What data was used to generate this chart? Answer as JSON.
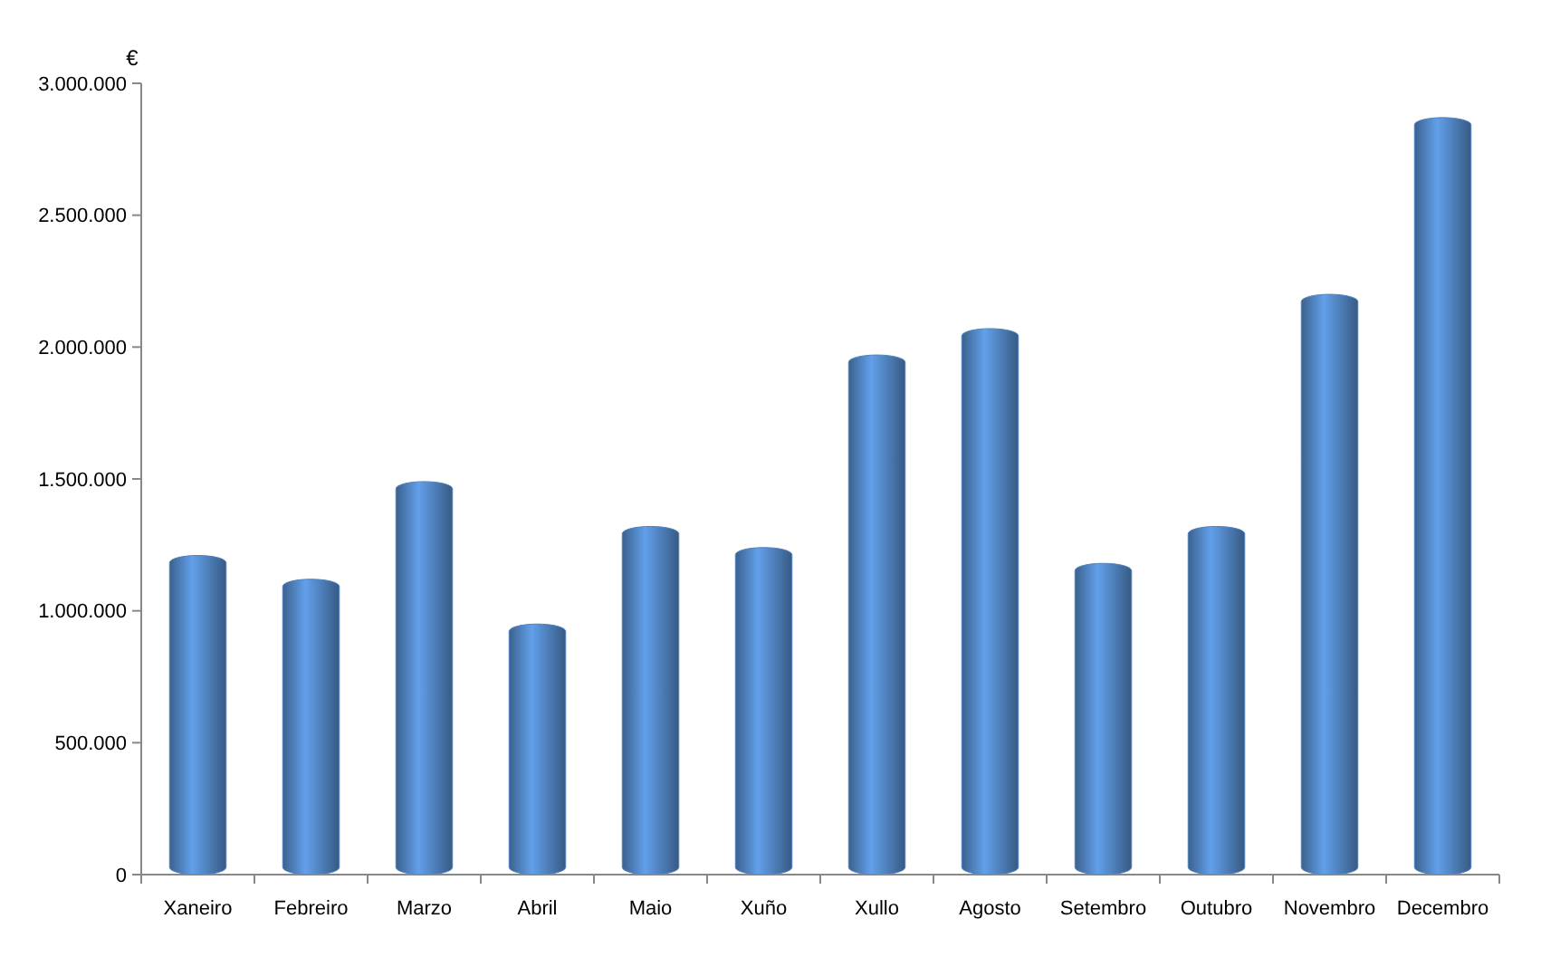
{
  "chart_data": {
    "type": "bar",
    "ylabel": "€",
    "categories": [
      "Xaneiro",
      "Febreiro",
      "Marzo",
      "Abril",
      "Maio",
      "Xuño",
      "Xullo",
      "Agosto",
      "Setembro",
      "Outubro",
      "Novembro",
      "Decembro"
    ],
    "values": [
      1210000,
      1120000,
      1490000,
      950000,
      1320000,
      1240000,
      1970000,
      2070000,
      1180000,
      1320000,
      2200000,
      2870000
    ],
    "color": "#4f81bd",
    "ylim": [
      0,
      3000000
    ],
    "yticks": [
      0,
      {
        "value": 500000,
        "label": "500.000"
      },
      {
        "value": 1000000,
        "label": "1.000.000"
      },
      {
        "value": 1500000,
        "label": "1.500.000"
      },
      {
        "value": 2000000,
        "label": "2.000.000"
      },
      {
        "value": 2500000,
        "label": "2.500.000"
      },
      {
        "value": 3000000,
        "label": "3.000.000"
      }
    ],
    "grid": false
  }
}
